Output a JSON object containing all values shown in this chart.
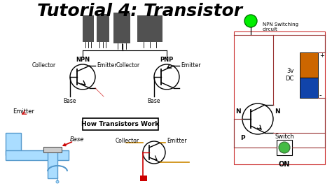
{
  "title": "Tutorial 4: Transistor",
  "title_fontsize": 18,
  "title_font": "DejaVu Sans",
  "bg_color": "#ffffff",
  "fig_width": 4.74,
  "fig_height": 2.66,
  "dpi": 100,
  "npn_label": "NPN",
  "pnp_label": "PNP",
  "collector_label": "Collector",
  "emitter_label": "Emitter",
  "base_label": "Base",
  "how_label": "How Transistors Work",
  "npn_switch_label": "NPN Switching\ncircuit",
  "voltage_label": "3v\nDC",
  "switch_label": "Switch",
  "on_label": "ON",
  "n_label1": "N",
  "n_label2": "N",
  "p_label": "P",
  "emitter_bottom_label": "Emitter",
  "base_bottom_label": "Base",
  "collector_bottom_label": "Collector",
  "emitter_left_label": "Emitter",
  "light_color": "#00ee00",
  "switch_color": "#44bb44",
  "water_color": "#aaddff",
  "pipe_color": "#aaddff",
  "pipe_edge": "#5599cc",
  "red_color": "#cc0000",
  "orange_color": "#cc8800",
  "box_color": "#000000",
  "battery_top": "#cc6600",
  "battery_mid": "#1144aa",
  "circuit_box_color": "#cc3333",
  "wire_color": "#993333"
}
